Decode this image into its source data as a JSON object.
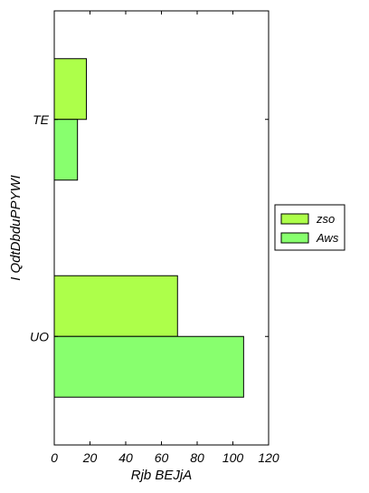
{
  "chart_data": {
    "type": "bar",
    "orientation": "horizontal",
    "title": "",
    "xlabel": "Rjb BEJjA",
    "ylabel": "I QdtDbduPPYWI",
    "categories": [
      "TE",
      "UO"
    ],
    "xlim": [
      0,
      120
    ],
    "xticks": [
      0,
      20,
      40,
      60,
      80,
      100,
      120
    ],
    "grid": false,
    "legend_position": "right",
    "series": [
      {
        "name": "zso",
        "values": [
          18,
          69
        ],
        "color": "#adff4a"
      },
      {
        "name": "Aws",
        "values": [
          13,
          106
        ],
        "color": "#88ff6e"
      }
    ]
  }
}
